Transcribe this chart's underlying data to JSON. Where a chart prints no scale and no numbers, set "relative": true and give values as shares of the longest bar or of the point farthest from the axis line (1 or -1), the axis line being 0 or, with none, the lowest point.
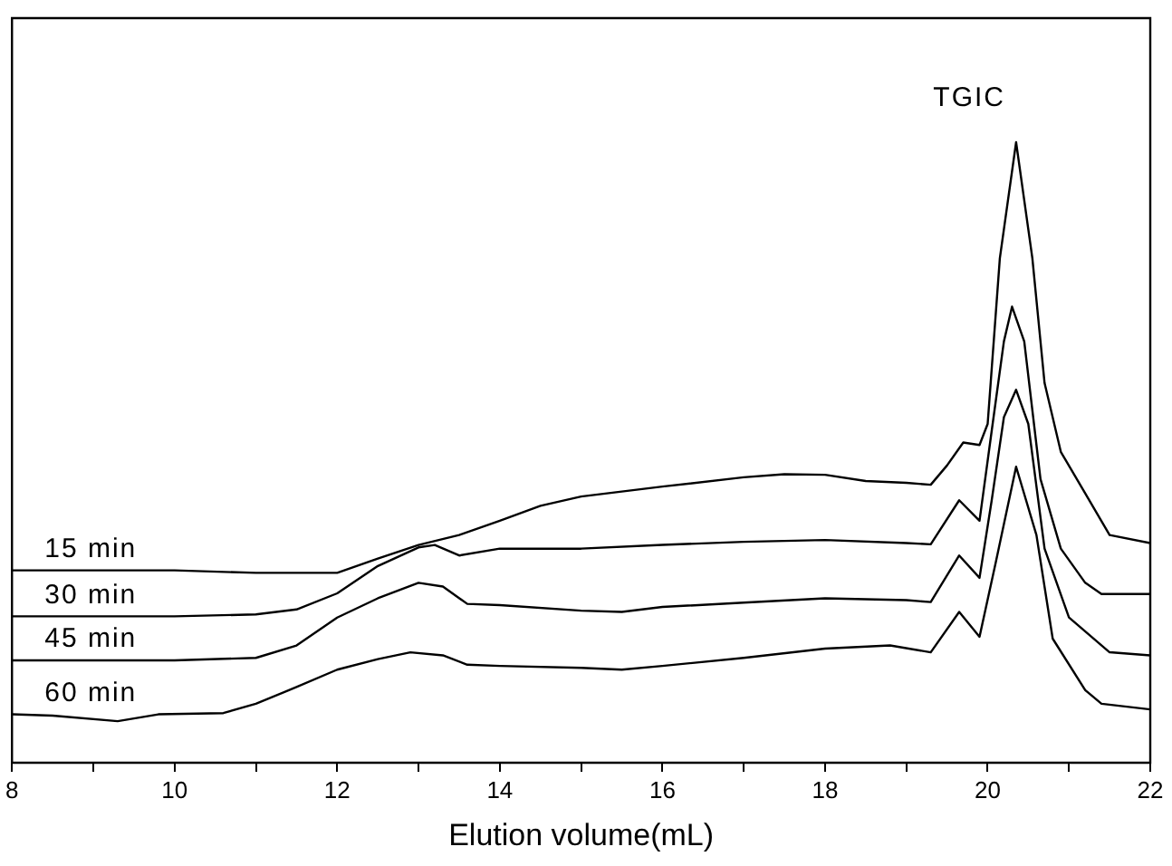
{
  "chart_data": {
    "type": "line",
    "relative": true,
    "xlabel": "Elution volume(mL)",
    "xlim": [
      8,
      22
    ],
    "xticks": [
      8,
      {
        "value": 9,
        "label": null
      },
      10,
      {
        "value": 11,
        "label": null
      },
      12,
      {
        "value": 13,
        "label": null
      },
      14,
      {
        "value": 15,
        "label": null
      },
      16,
      {
        "value": 17,
        "label": null
      },
      18,
      {
        "value": 19,
        "label": null
      },
      20,
      {
        "value": 21,
        "label": null
      },
      22
    ],
    "annotations": [
      "TGIC"
    ],
    "series": [
      {
        "name": "15 min",
        "color": "#000000",
        "x": [
          8,
          10,
          11,
          12,
          12.5,
          13,
          13.5,
          14,
          14.5,
          15,
          16,
          17,
          17.5,
          18,
          18.5,
          19,
          19.3,
          19.5,
          19.7,
          19.9,
          20.0,
          20.15,
          20.35,
          20.55,
          20.7,
          20.9,
          21.2,
          21.5,
          22
        ],
        "values": [
          0.31,
          0.31,
          0.306,
          0.306,
          0.329,
          0.351,
          0.367,
          0.39,
          0.414,
          0.429,
          0.445,
          0.46,
          0.465,
          0.464,
          0.454,
          0.451,
          0.448,
          0.479,
          0.516,
          0.512,
          0.546,
          0.813,
          1.0,
          0.813,
          0.612,
          0.501,
          0.434,
          0.367,
          0.354
        ]
      },
      {
        "name": "30 min",
        "color": "#000000",
        "x": [
          8,
          10,
          11,
          11.5,
          12,
          12.5,
          13,
          13.2,
          13.5,
          14,
          15,
          16,
          17,
          18,
          19,
          19.3,
          19.65,
          19.9,
          20.05,
          20.2,
          20.3,
          20.45,
          20.65,
          20.9,
          21.2,
          21.4,
          22
        ],
        "values": [
          0.236,
          0.236,
          0.239,
          0.247,
          0.273,
          0.317,
          0.347,
          0.351,
          0.334,
          0.345,
          0.345,
          0.351,
          0.356,
          0.359,
          0.354,
          0.352,
          0.423,
          0.39,
          0.535,
          0.679,
          0.735,
          0.679,
          0.457,
          0.345,
          0.29,
          0.272,
          0.272
        ]
      },
      {
        "name": "45 min",
        "color": "#000000",
        "x": [
          8,
          10,
          11,
          11.5,
          12,
          12.5,
          13,
          13.3,
          13.6,
          14,
          15,
          15.5,
          16,
          17,
          18,
          19,
          19.3,
          19.65,
          19.9,
          20.05,
          20.2,
          20.35,
          20.5,
          20.7,
          21.0,
          21.5,
          22
        ],
        "values": [
          0.165,
          0.165,
          0.169,
          0.189,
          0.234,
          0.265,
          0.29,
          0.284,
          0.256,
          0.254,
          0.245,
          0.243,
          0.251,
          0.258,
          0.265,
          0.262,
          0.259,
          0.334,
          0.298,
          0.423,
          0.557,
          0.601,
          0.546,
          0.345,
          0.234,
          0.178,
          0.173
        ]
      },
      {
        "name": "60 min",
        "color": "#000000",
        "x": [
          8,
          8.5,
          9.3,
          9.8,
          10.6,
          11,
          11.5,
          12,
          12.5,
          12.9,
          13.3,
          13.6,
          14,
          15,
          15.5,
          16,
          17,
          18,
          18.8,
          19.3,
          19.65,
          19.9,
          20.1,
          20.35,
          20.6,
          20.8,
          21.2,
          21.4,
          22
        ],
        "values": [
          0.078,
          0.076,
          0.067,
          0.078,
          0.08,
          0.095,
          0.122,
          0.15,
          0.167,
          0.178,
          0.173,
          0.158,
          0.156,
          0.153,
          0.15,
          0.156,
          0.169,
          0.184,
          0.189,
          0.178,
          0.243,
          0.203,
          0.323,
          0.477,
          0.367,
          0.2,
          0.117,
          0.095,
          0.086
        ]
      }
    ]
  }
}
